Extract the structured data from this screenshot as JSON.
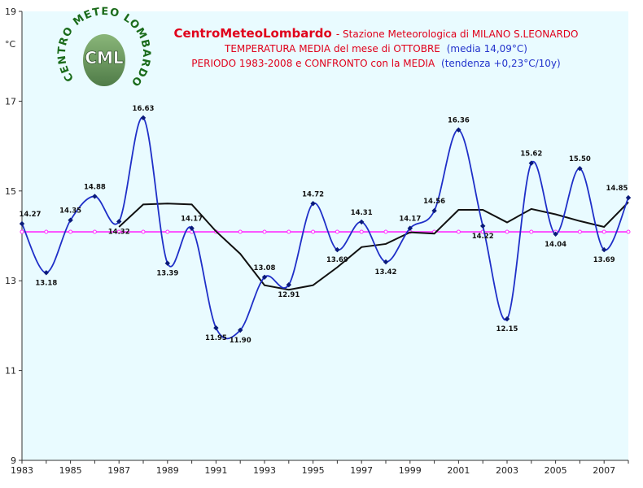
{
  "logo": {
    "ring_text": "CENTRO METEO LOMBARDO",
    "monogram": "CML"
  },
  "title": {
    "brand": "CentroMeteoLombardo",
    "brand_rest": " - Stazione Meteorologica di MILANO S.LEONARDO",
    "line2_main": "TEMPERATURA MEDIA del mese di OTTOBRE",
    "line2_note": "(media 14,09°C)",
    "line3_main": "PERIODO 1983-2008 e CONFRONTO con la MEDIA",
    "line3_note": "(tendenza +0,23°C/10y)"
  },
  "colors": {
    "background": "#e9fbff",
    "series_main": "#1f2fc8",
    "marker": "#0a1a7a",
    "moving_average": "#111111",
    "mean_line": "#ff2aff",
    "title_red": "#e0001b",
    "title_blue": "#2233cc"
  },
  "chart_data": {
    "type": "line",
    "title": "CentroMeteoLombardo - Stazione Meteorologica di MILANO S.LEONARDO",
    "ylabel": "°C",
    "xlim": [
      1983,
      2008
    ],
    "ylim": [
      9,
      19
    ],
    "yticks": [
      9,
      11,
      13,
      15,
      17,
      19
    ],
    "xticks": [
      1983,
      1985,
      1987,
      1989,
      1991,
      1993,
      1995,
      1997,
      1999,
      2001,
      2003,
      2005,
      2007
    ],
    "grid": false,
    "series": [
      {
        "x": [
          1983,
          1984,
          1985,
          1986,
          1987,
          1988,
          1989,
          1990,
          1991,
          1992,
          1993,
          1994,
          1995,
          1996,
          1997,
          1998,
          1999,
          2000,
          2001,
          2002,
          2003,
          2004,
          2005,
          2006,
          2007,
          2008
        ],
        "values": [
          14.27,
          13.18,
          14.35,
          14.88,
          14.32,
          16.63,
          13.39,
          14.17,
          11.95,
          11.9,
          13.08,
          12.91,
          14.72,
          13.69,
          14.31,
          13.42,
          14.17,
          14.56,
          16.36,
          14.22,
          12.15,
          15.62,
          14.04,
          15.5,
          13.69,
          14.85
        ],
        "labels": [
          "14.27",
          "13.18",
          "14.35",
          "14.88",
          "14.32",
          "16.63",
          "13.39",
          "14.17",
          "11.95",
          "11.90",
          "13.08",
          "12.91",
          "14.72",
          "13.69",
          "14.31",
          "13.42",
          "14.17",
          "14.56",
          "16.36",
          "14.22",
          "12.15",
          "15.62",
          "14.04",
          "15.50",
          "13.69",
          "14.85"
        ],
        "label_pos": [
          "above",
          "below",
          "above",
          "above",
          "below",
          "above",
          "below",
          "above",
          "below",
          "below",
          "above",
          "below",
          "above",
          "below",
          "above",
          "below",
          "above",
          "above",
          "above",
          "below",
          "below",
          "above",
          "below",
          "above",
          "below",
          "above"
        ]
      },
      {
        "x": [
          1987,
          1988,
          1989,
          1990,
          1991,
          1992,
          1993,
          1994,
          1995,
          1996,
          1997,
          1998,
          1999,
          2000,
          2001,
          2002,
          2003,
          2004,
          2005,
          2006,
          2007,
          2008
        ],
        "values": [
          14.2,
          14.7,
          14.72,
          14.7,
          14.1,
          13.6,
          12.9,
          12.8,
          12.9,
          13.3,
          13.75,
          13.82,
          14.08,
          14.05,
          14.58,
          14.58,
          14.3,
          14.6,
          14.48,
          14.33,
          14.2,
          14.75
        ]
      },
      {
        "x": [
          1983,
          1984,
          1985,
          1986,
          1987,
          1988,
          1989,
          1990,
          1991,
          1992,
          1993,
          1994,
          1995,
          1996,
          1997,
          1998,
          1999,
          2000,
          2001,
          2002,
          2003,
          2004,
          2005,
          2006,
          2007,
          2008
        ],
        "values": [
          14.09,
          14.09,
          14.09,
          14.09,
          14.09,
          14.09,
          14.09,
          14.09,
          14.09,
          14.09,
          14.09,
          14.09,
          14.09,
          14.09,
          14.09,
          14.09,
          14.09,
          14.09,
          14.09,
          14.09,
          14.09,
          14.09,
          14.09,
          14.09,
          14.09,
          14.09
        ]
      }
    ]
  }
}
